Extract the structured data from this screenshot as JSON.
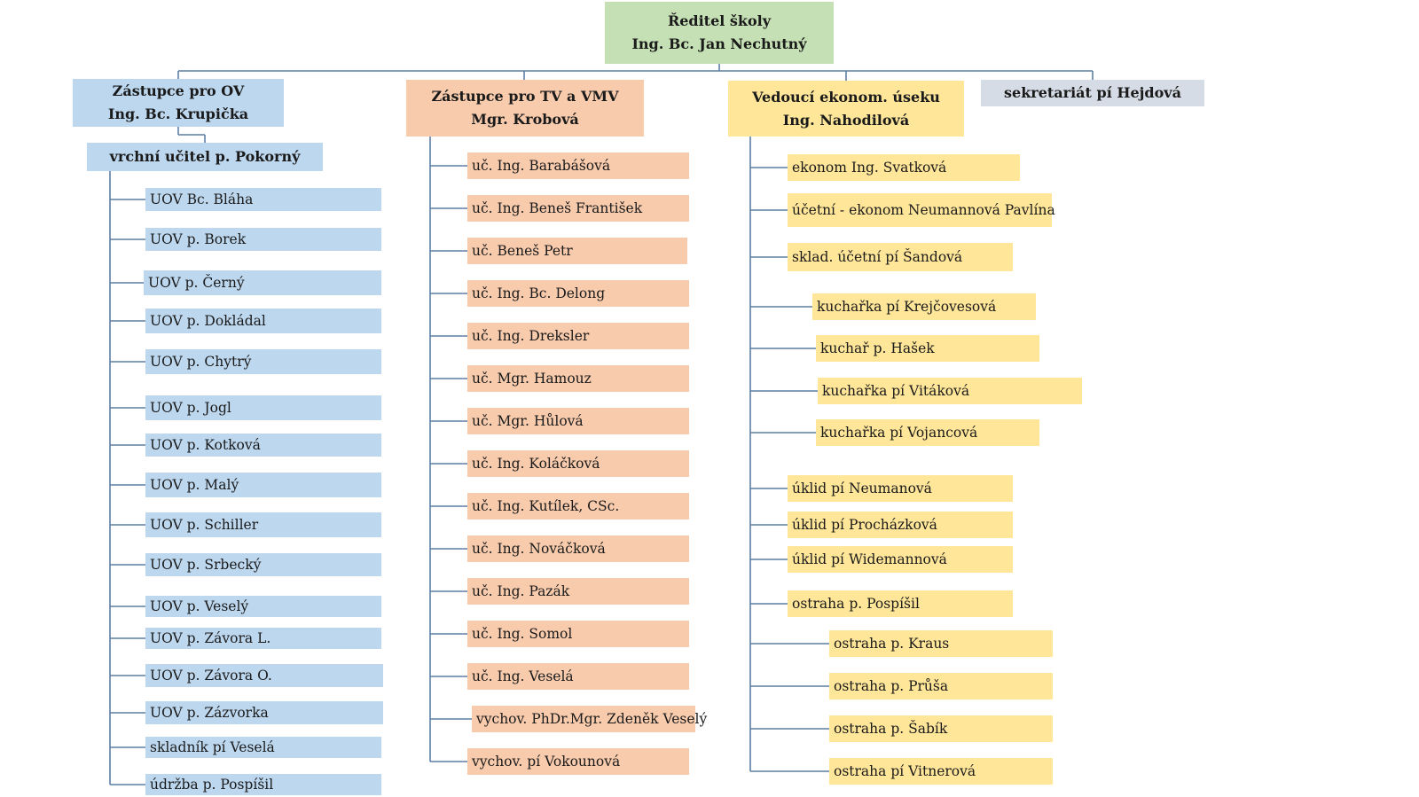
{
  "director": {
    "title": "Ředitel školy",
    "name": "Ing. Bc. Jan Nechutný"
  },
  "ov": {
    "title": "Zástupce pro OV",
    "name": "Ing. Bc. Krupička",
    "sub": "vrchní učitel p. Pokorný",
    "items": [
      "UOV Bc. Bláha",
      "UOV p. Borek",
      "UOV p. Černý",
      "UOV p. Dokládal",
      "UOV p. Chytrý",
      "UOV p.  Jogl",
      "UOV p. Kotková",
      "UOV p. Malý",
      "UOV p. Schiller",
      "UOV p. Srbecký",
      "UOV p. Veselý",
      "UOV p. Závora L.",
      "UOV p. Závora O.",
      "UOV p. Zázvorka",
      "skladník pí Veselá",
      "údržba p. Pospíšil"
    ]
  },
  "tv": {
    "title": "Zástupce pro TV a VMV",
    "name": "Mgr. Krobová",
    "items": [
      "uč. Ing. Barabášová",
      "uč. Ing. Beneš František",
      "uč. Beneš Petr",
      "uč. Ing. Bc. Delong",
      "uč. Ing. Dreksler",
      "uč. Mgr. Hamouz",
      "uč. Mgr. Hůlová",
      "uč. Ing. Koláčková",
      "uč. Ing. Kutílek, CSc.",
      "uč. Ing. Nováčková",
      "uč. Ing. Pazák",
      "uč. Ing. Somol",
      "uč. Ing. Veselá",
      "vychov. PhDr.Mgr. Zdeněk Veselý",
      "vychov. pí Vokounová"
    ]
  },
  "econ": {
    "title": "Vedoucí ekonom. úseku",
    "name": "Ing. Nahodilová",
    "items": [
      "ekonom Ing. Svatková",
      "účetní - ekonom Neumannová Pavlína",
      "sklad. účetní pí Šandová",
      "kuchařka pí Krejčovesová",
      "kuchař p. Hašek",
      "kuchařka pí Vitáková",
      "kuchařka pí Vojancová",
      "úklid pí Neumanová",
      "úklid pí Procházková",
      "úklid pí Widemannová",
      "ostraha p. Pospíšil",
      "ostraha p. Kraus",
      "ostraha p. Průša",
      "ostraha p. Šabík",
      "ostraha pí Vitnerová"
    ]
  },
  "secretariat": {
    "label": "sekretariát pí Hejdová"
  },
  "colors": {
    "director": "#c5e0b4",
    "ov": "#bdd7ee",
    "tv": "#f8cbad",
    "econ": "#ffe699",
    "secretariat": "#d6dce5",
    "line": "#5b7fa3"
  }
}
